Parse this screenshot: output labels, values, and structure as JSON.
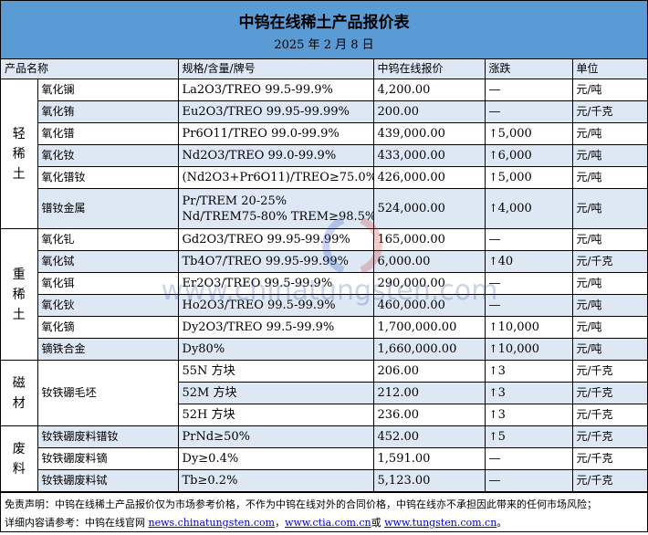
{
  "title": "中钨在线稀土产品报价表",
  "date": "2025 年 2 月 8 日",
  "headers": [
    "产品名称",
    "规格/含量/牌号",
    "中钨在线报价",
    "涨跌",
    "单位"
  ],
  "groups": [
    {
      "category": "轻稀土",
      "rows": [
        {
          "name": "氧化镧",
          "spec": "La2O3/TREO 99.5-99.9%",
          "price": "4,200.00",
          "change": "—",
          "dir": "flat",
          "unit": "元/吨"
        },
        {
          "name": "氧化铕",
          "spec": "Eu2O3/TREO 99.95-99.99%",
          "price": "200.00",
          "change": "—",
          "dir": "flat",
          "unit": "元/千克"
        },
        {
          "name": "氧化镨",
          "spec": "Pr6O11/TREO 99.0-99.9%",
          "price": "439,000.00",
          "change": "5,000",
          "dir": "up",
          "unit": "元/吨"
        },
        {
          "name": "氧化钕",
          "spec": "Nd2O3/TREO 99.0-99.9%",
          "price": "433,000.00",
          "change": "6,000",
          "dir": "up",
          "unit": "元/吨"
        },
        {
          "name": "氧化镨钕",
          "spec": "(Nd2O3+Pr6O11)/TREO≥75.0%",
          "price": "426,000.00",
          "change": "5,000",
          "dir": "up",
          "unit": "元/吨"
        },
        {
          "name": "镨钕金属",
          "spec": "Pr/TREM 20-25%",
          "spec2": "Nd/TREM75-80% TREM≥98.5%",
          "price": "524,000.00",
          "change": "4,000",
          "dir": "up",
          "unit": "元/吨"
        }
      ]
    },
    {
      "category": "重稀土",
      "rows": [
        {
          "name": "氧化钆",
          "spec": "Gd2O3/TREO 99.95-99.99%",
          "price": "165,000.00",
          "change": "—",
          "dir": "flat",
          "unit": "元/吨"
        },
        {
          "name": "氧化铽",
          "spec": "Tb4O7/TREO 99.95-99.99%",
          "price": "6,000.00",
          "change": "40",
          "dir": "up",
          "unit": "元/千克"
        },
        {
          "name": "氧化铒",
          "spec": "Er2O3/TREO 99.5-99.9%",
          "price": "290,000.00",
          "change": "—",
          "dir": "flat",
          "unit": "元/吨"
        },
        {
          "name": "氧化钬",
          "spec": "Ho2O3/TREO 99.5-99.9%",
          "price": "460,000.00",
          "change": "—",
          "dir": "flat",
          "unit": "元/吨"
        },
        {
          "name": "氧化镝",
          "spec": "Dy2O3/TREO 99.5-99.9%",
          "price": "1,700,000.00",
          "change": "10,000",
          "dir": "up",
          "unit": "元/吨"
        },
        {
          "name": "镝铁合金",
          "spec": "Dy80%",
          "price": "1,660,000.00",
          "change": "10,000",
          "dir": "up",
          "unit": "元/吨"
        }
      ]
    },
    {
      "category": "磁材",
      "name": "钕铁硼毛坯",
      "rows": [
        {
          "spec": "55N 方块",
          "price": "206.00",
          "change": "3",
          "dir": "up",
          "unit": "元/千克"
        },
        {
          "spec": "52M 方块",
          "price": "212.00",
          "change": "3",
          "dir": "up",
          "unit": "元/千克"
        },
        {
          "spec": "52H 方块",
          "price": "236.00",
          "change": "3",
          "dir": "up",
          "unit": "元/千克"
        }
      ]
    },
    {
      "category": "废料",
      "rows": [
        {
          "name": "钕铁硼废料镨钕",
          "spec": "PrNd≥50%",
          "price": "452.00",
          "change": "5",
          "dir": "up",
          "unit": "元/千克"
        },
        {
          "name": "钕铁硼废料镝",
          "spec": "Dy≥0.4%",
          "price": "1,591.00",
          "change": "—",
          "dir": "flat",
          "unit": "元/千克"
        },
        {
          "name": "钕铁硼废料铽",
          "spec": "Tb≥0.2%",
          "price": "5,123.00",
          "change": "—",
          "dir": "flat",
          "unit": "元/千克"
        }
      ]
    }
  ],
  "footer": {
    "disclaimer": "免责声明：中钨在线稀土产品报价仅为市场参考价格，不作为中钨在线对外的合同价格，中钨在线亦不承担因此带来的任何市场风险；",
    "ref_prefix": "详细内容请参考：中钨在线官网 ",
    "link1": "news.chinatungsten.com",
    "sep1": "，",
    "link2": "www.ctia.com.cn",
    "sep2": "或 ",
    "link3": "www.tungsten.com.cn",
    "end": "。"
  },
  "watermark": "www.chinatungsten.com",
  "colors": {
    "title_bg": "#5b9bd5",
    "stripe": "#dde8f4",
    "link": "#0000cc"
  }
}
